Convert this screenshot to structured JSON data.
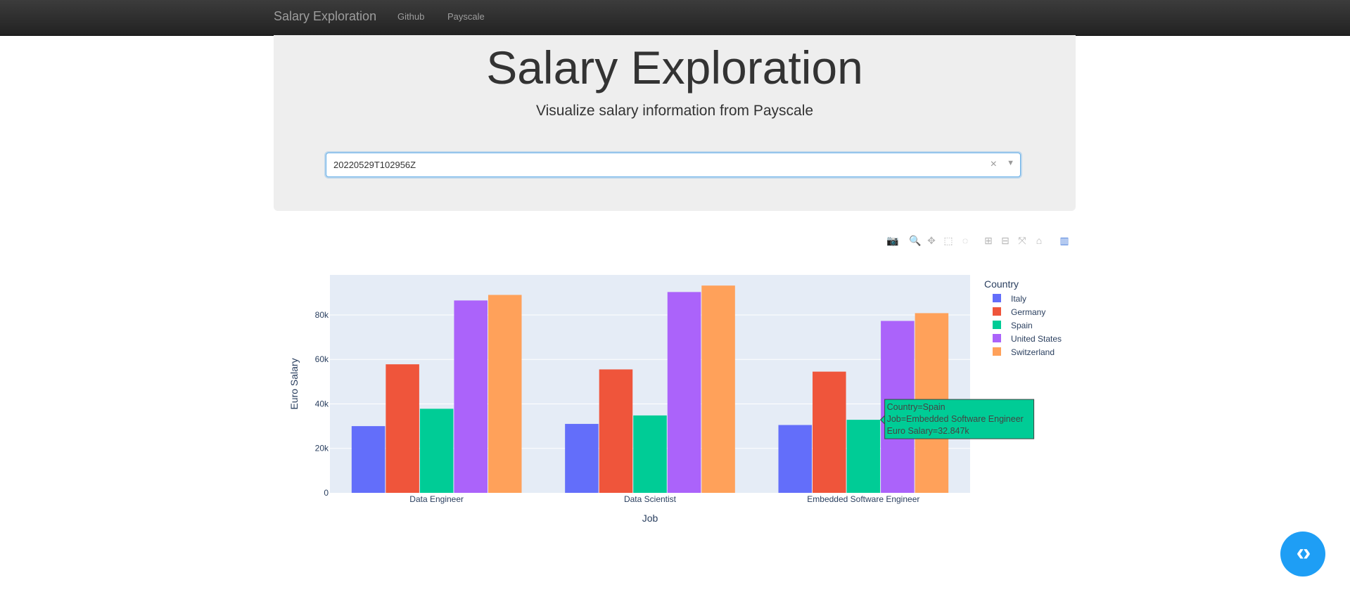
{
  "navbar": {
    "brand": "Salary Exploration",
    "links": [
      "Github",
      "Payscale"
    ]
  },
  "header": {
    "title": "Salary Exploration",
    "subtitle": "Visualize salary information from Payscale"
  },
  "dataset_select": {
    "value": "20220529T102956Z",
    "clear_glyph": "×",
    "arrow_glyph": "▼"
  },
  "modebar": {
    "icons": [
      "camera-icon",
      "zoom-icon",
      "pan-icon",
      "box-select-icon",
      "lasso-icon",
      "zoom-in-icon",
      "zoom-out-icon",
      "autoscale-icon",
      "reset-axes-icon",
      "plotly-logo-icon"
    ],
    "glyphs": [
      "📷",
      "🔍",
      "✥",
      "⬚",
      "◌",
      "⊞",
      "⊟",
      "⤧",
      "⌂",
      "▥"
    ]
  },
  "chart_data": {
    "type": "bar",
    "categories": [
      "Data Engineer",
      "Data Scientist",
      "Embedded Software Engineer"
    ],
    "series": [
      {
        "name": "Italy",
        "color": "#636efa",
        "values": [
          30000,
          31000,
          30500
        ]
      },
      {
        "name": "Germany",
        "color": "#ef553b",
        "values": [
          57800,
          55500,
          54500
        ]
      },
      {
        "name": "Spain",
        "color": "#00cc96",
        "values": [
          37800,
          34800,
          32847
        ]
      },
      {
        "name": "United States",
        "color": "#ab63fa",
        "values": [
          86500,
          90300,
          77300
        ]
      },
      {
        "name": "Switzerland",
        "color": "#ffa15a",
        "values": [
          89000,
          93200,
          80800
        ]
      }
    ],
    "xlabel": "Job",
    "ylabel": "Euro Salary",
    "ylim": [
      0,
      98000
    ],
    "yticks": [
      0,
      20000,
      40000,
      60000,
      80000
    ],
    "ytick_labels": [
      "0",
      "20k",
      "40k",
      "60k",
      "80k"
    ],
    "legend_title": "Country",
    "legend_position": "right",
    "plot_bg": "#e5ecf6",
    "hover": {
      "lines": [
        "Country=Spain",
        "Job=Embedded Software Engineer",
        "Euro Salary=32.847k"
      ],
      "series_index": 2,
      "category_index": 2
    }
  },
  "fab": {
    "glyph": "‹›"
  }
}
